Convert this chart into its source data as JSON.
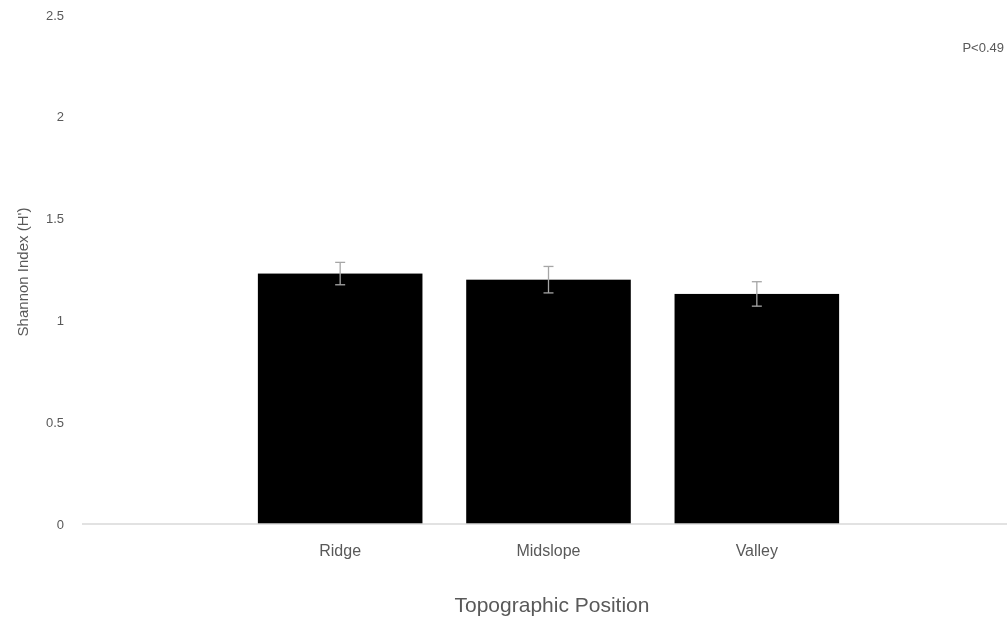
{
  "chart_data": {
    "type": "bar",
    "xlabel": "Topographic Position",
    "ylabel": "Shannon Index (H')",
    "categories": [
      "Ridge",
      "Midslope",
      "Valley"
    ],
    "values": [
      1.23,
      1.2,
      1.13
    ],
    "errors": [
      0.055,
      0.065,
      0.06
    ],
    "color": "#000000",
    "ylim": [
      0,
      2.5
    ],
    "yticks": [
      0,
      0.5,
      1,
      1.5,
      2,
      2.5
    ],
    "annotations": [
      "P<0.49"
    ]
  }
}
